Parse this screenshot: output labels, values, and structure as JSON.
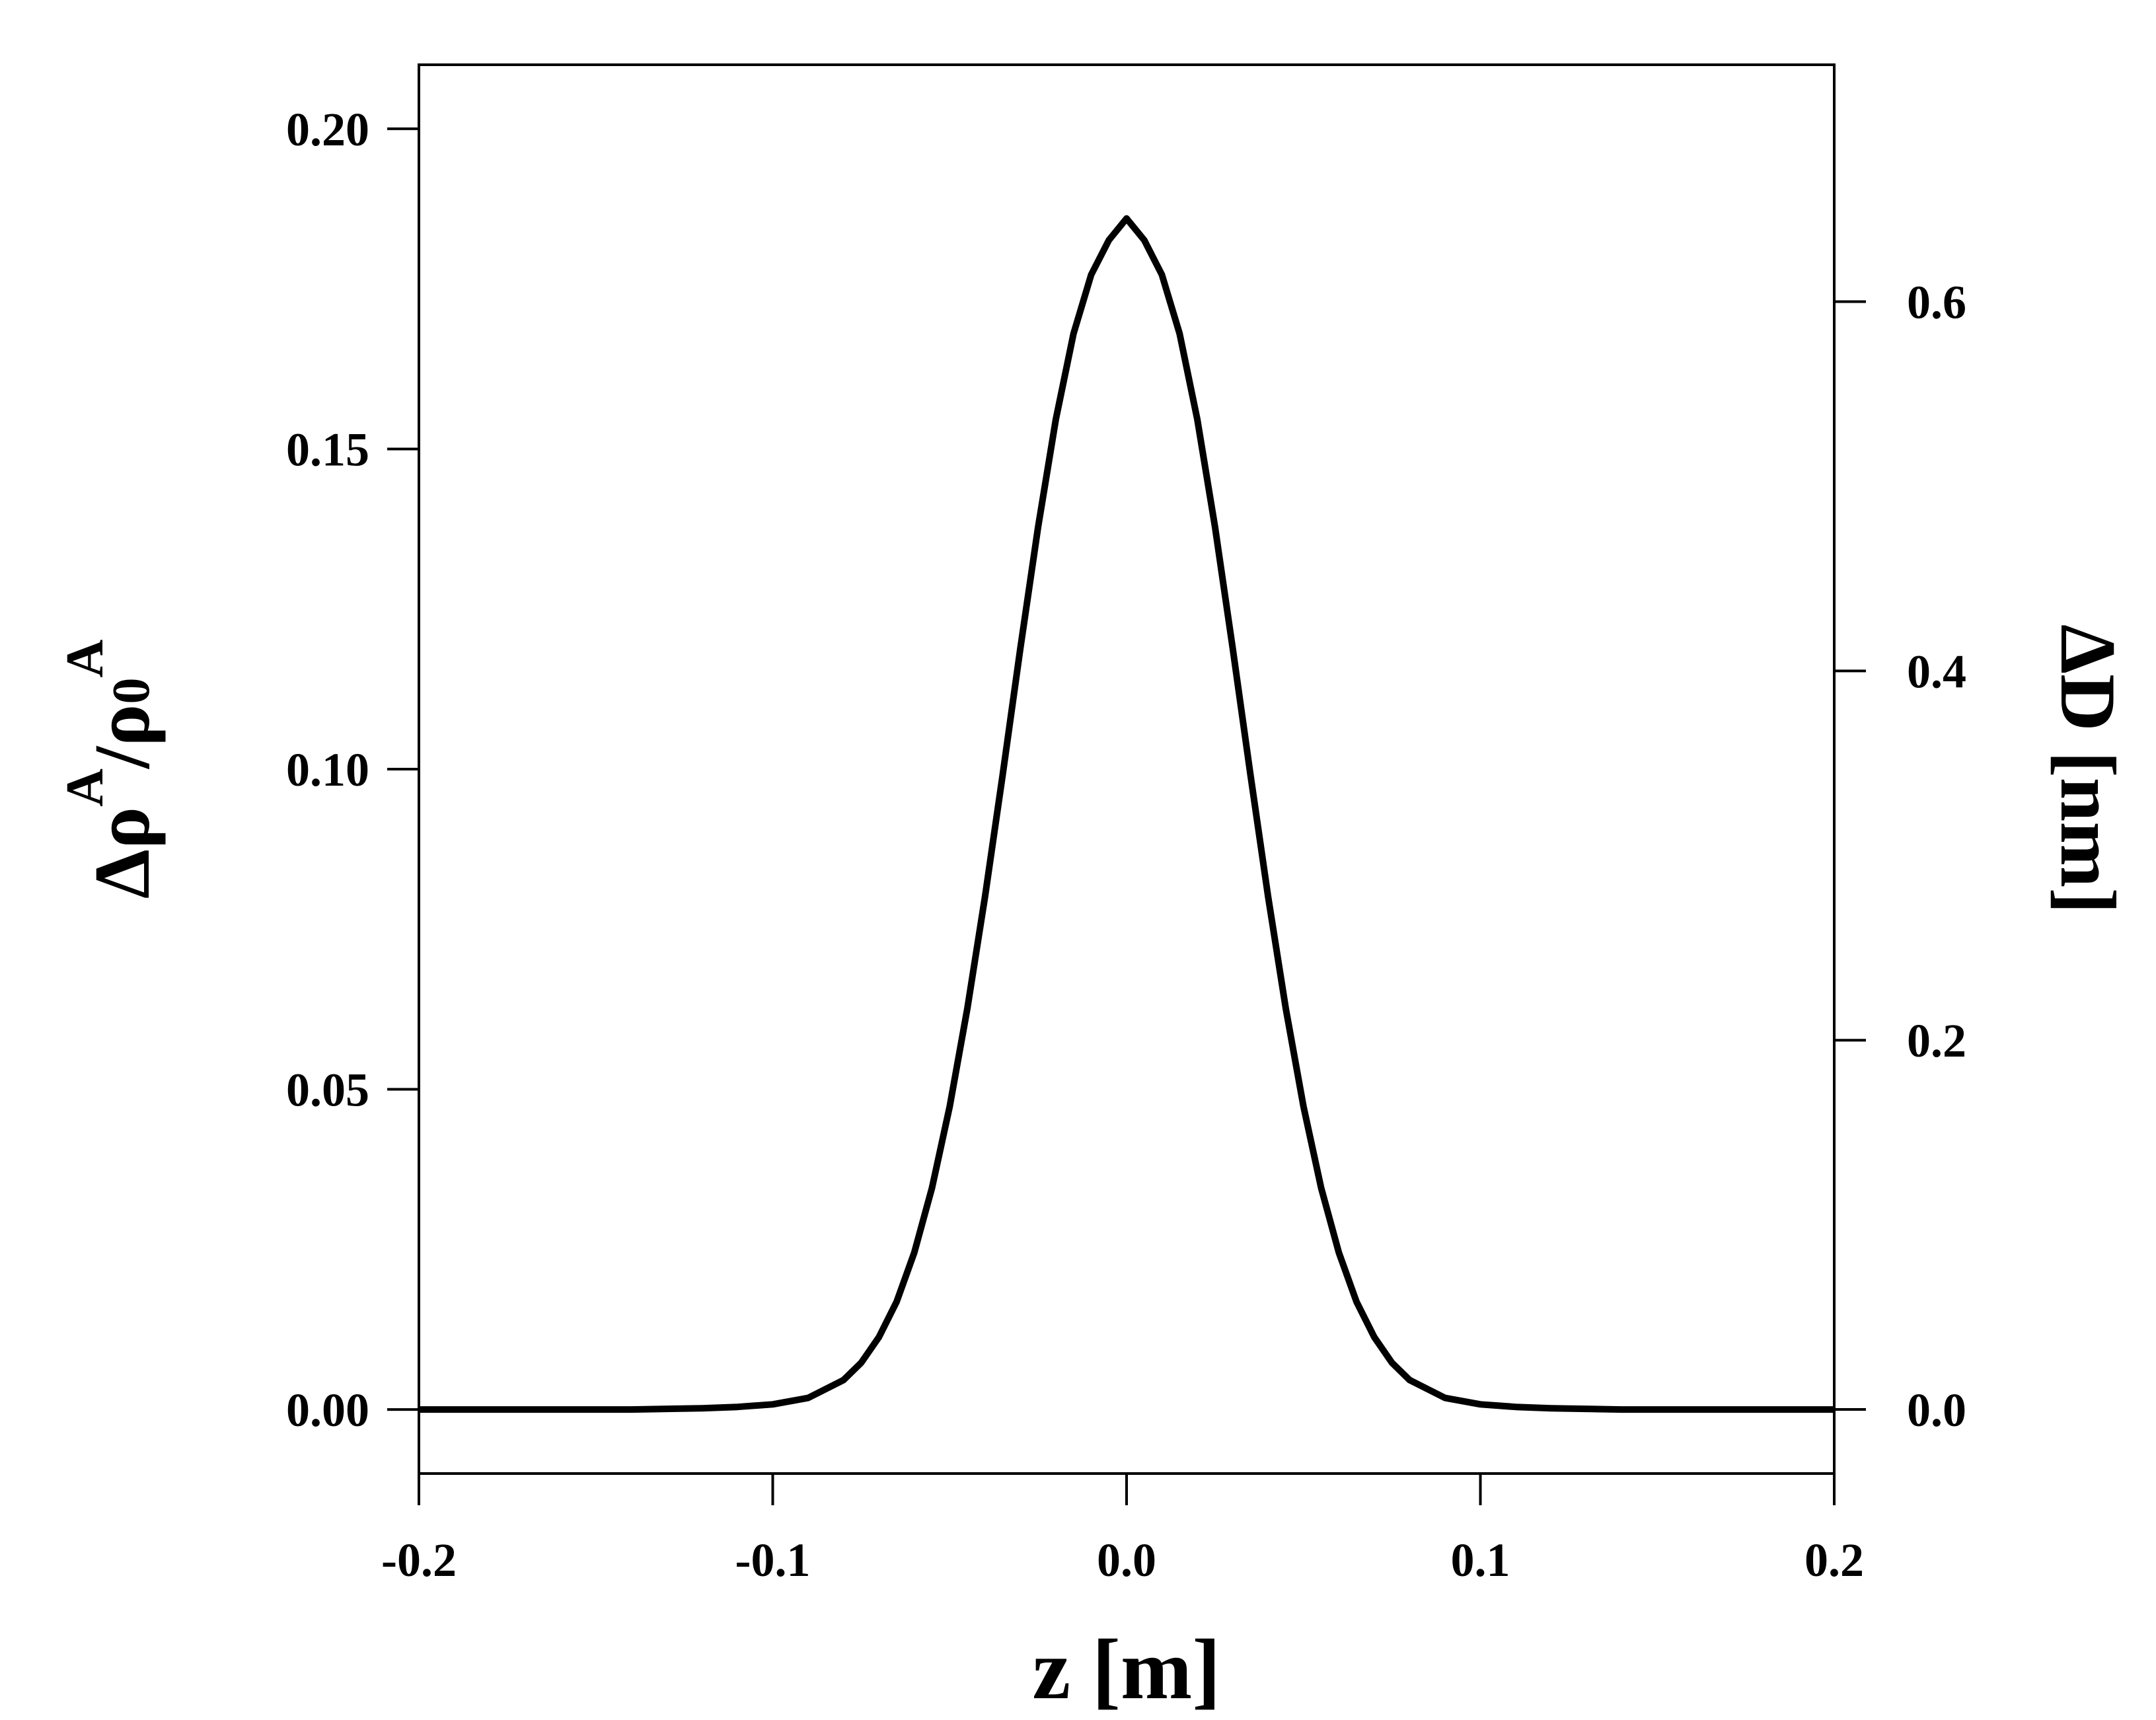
{
  "chart_data": {
    "type": "line",
    "title": "",
    "xlabel": "z [m]",
    "ylabel_left": {
      "delta": "Δρ",
      "sup": "A",
      "slash": "/ρ",
      "sub": "0",
      "sup2": "A"
    },
    "ylabel_right": "ΔD [nm]",
    "xlim": [
      -0.2,
      0.2
    ],
    "ylim_left": [
      -0.01,
      0.21
    ],
    "ylim_right": [
      -0.0347,
      0.7283
    ],
    "x_ticks": [
      -0.2,
      -0.1,
      0.0,
      0.1,
      0.2
    ],
    "x_tick_labels": [
      "-0.2",
      "-0.1",
      "0.0",
      "0.1",
      "0.2"
    ],
    "y_left_ticks": [
      0.0,
      0.05,
      0.1,
      0.15,
      0.2
    ],
    "y_left_tick_labels": [
      "0.00",
      "0.05",
      "0.10",
      "0.15",
      "0.20"
    ],
    "y_right_ticks": [
      0.0,
      0.2,
      0.4,
      0.6
    ],
    "y_right_tick_labels": [
      "0.0",
      "0.2",
      "0.4",
      "0.6"
    ],
    "grid": false,
    "legend": "none",
    "line_color": "#000000",
    "series": [
      {
        "x": [
          -0.2,
          -0.18,
          -0.16,
          -0.14,
          -0.12,
          -0.11,
          -0.1,
          -0.09,
          -0.08,
          -0.075,
          -0.07,
          -0.065,
          -0.06,
          -0.055,
          -0.05,
          -0.045,
          -0.04,
          -0.035,
          -0.03,
          -0.025,
          -0.02,
          -0.015,
          -0.01,
          -0.005,
          0.0,
          0.005,
          0.01,
          0.015,
          0.02,
          0.025,
          0.03,
          0.035,
          0.04,
          0.045,
          0.05,
          0.055,
          0.06,
          0.065,
          0.07,
          0.075,
          0.08,
          0.09,
          0.1,
          0.11,
          0.12,
          0.14,
          0.16,
          0.18,
          0.2
        ],
        "y": [
          0.0,
          0.0,
          0.0,
          0.0,
          0.0002,
          0.0004,
          0.0008,
          0.0018,
          0.0046,
          0.0073,
          0.0113,
          0.0168,
          0.0245,
          0.0346,
          0.0473,
          0.0626,
          0.0801,
          0.0992,
          0.1189,
          0.1378,
          0.1546,
          0.168,
          0.1772,
          0.1826,
          0.186,
          0.1826,
          0.1772,
          0.168,
          0.1546,
          0.1378,
          0.1189,
          0.0992,
          0.0801,
          0.0626,
          0.0473,
          0.0346,
          0.0245,
          0.0168,
          0.0113,
          0.0073,
          0.0046,
          0.0018,
          0.0008,
          0.0004,
          0.0002,
          0.0,
          0.0,
          0.0,
          0.0
        ]
      }
    ]
  }
}
